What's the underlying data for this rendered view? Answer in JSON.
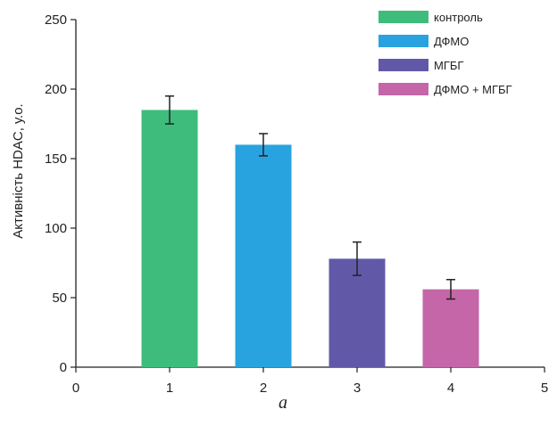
{
  "chart_data": {
    "type": "bar",
    "ylabel": "Активність HDAC, у.о.",
    "caption": "a",
    "xlim": [
      0,
      5
    ],
    "ylim": [
      0,
      250
    ],
    "xticks": [
      "0",
      "1",
      "2",
      "3",
      "4",
      "5"
    ],
    "yticks": [
      "0",
      "50",
      "100",
      "150",
      "200",
      "250"
    ],
    "grid": false,
    "legend_position": "top-right",
    "series": [
      {
        "name": "контроль",
        "x": 1,
        "value": 185,
        "error": 10,
        "color": "#3dbc7c"
      },
      {
        "name": "ДФМО",
        "x": 2,
        "value": 160,
        "error": 8,
        "color": "#29a3df"
      },
      {
        "name": "МГБГ",
        "x": 3,
        "value": 78,
        "error": 12,
        "color": "#6159a8"
      },
      {
        "name": "ДФМО + МГБГ",
        "x": 4,
        "value": 56,
        "error": 7,
        "color": "#c466a8"
      }
    ]
  }
}
